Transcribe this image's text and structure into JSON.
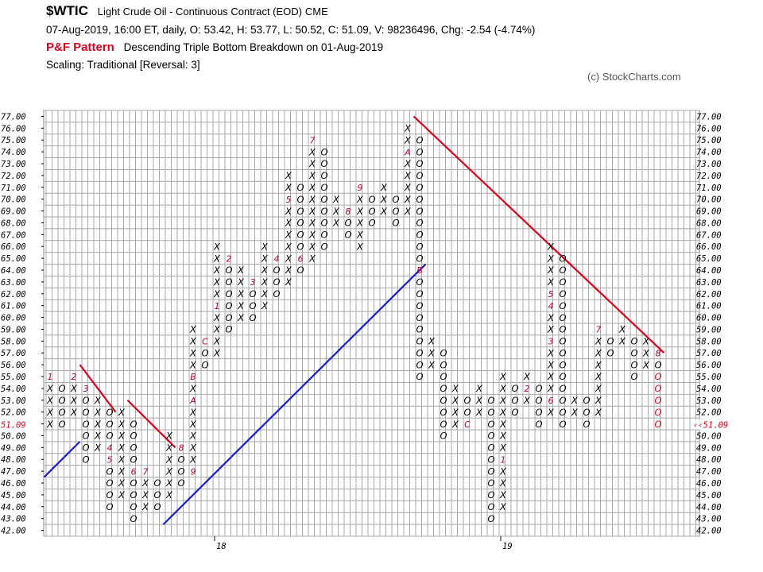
{
  "header": {
    "symbol": "$WTIC",
    "description": "Light Crude Oil - Continuous Contract (EOD)",
    "exchange": "CME",
    "stats": "07-Aug-2019, 16:00 ET, daily, O: 53.42, H: 53.77, L: 50.52, C: 51.09, V: 98236496, Chg: -2.54 (-4.74%)",
    "pattern_label": "P&F Pattern",
    "pattern_text": "Descending Triple Bottom Breakdown on 01-Aug-2019",
    "scaling": "Scaling: Traditional [Reversal: 3]",
    "copyright": "(c) StockCharts.com"
  },
  "colors": {
    "red": "#e0001b",
    "blue": "#1a1ad8",
    "grid": "#a9a9a9",
    "marker": "#c00030"
  },
  "chart_data": {
    "type": "point-and-figure",
    "box_size": 1,
    "reversal": 3,
    "ylim": [
      42,
      77
    ],
    "y_ticks": [
      42,
      43,
      44,
      45,
      46,
      47,
      48,
      49,
      50,
      51,
      52,
      53,
      54,
      55,
      56,
      57,
      58,
      59,
      60,
      61,
      62,
      63,
      64,
      65,
      66,
      67,
      68,
      69,
      70,
      71,
      72,
      73,
      74,
      75,
      76,
      77
    ],
    "x_labels": [
      {
        "column": 14,
        "label": "18"
      },
      {
        "column": 38,
        "label": "19"
      }
    ],
    "current_price_label": "51.09",
    "columns": [
      {
        "t": "X",
        "lo": 51,
        "hi": 55,
        "marks": {
          "55": "1"
        }
      },
      {
        "t": "O",
        "lo": 51,
        "hi": 54
      },
      {
        "t": "X",
        "lo": 52,
        "hi": 55,
        "marks": {
          "55": "2"
        }
      },
      {
        "t": "O",
        "lo": 48,
        "hi": 54,
        "marks": {
          "54": "3"
        }
      },
      {
        "t": "X",
        "lo": 49,
        "hi": 53
      },
      {
        "t": "O",
        "lo": 44,
        "hi": 52,
        "marks": {
          "49": "4",
          "48": "5"
        }
      },
      {
        "t": "X",
        "lo": 45,
        "hi": 52
      },
      {
        "t": "O",
        "lo": 43,
        "hi": 51,
        "marks": {
          "47": "6"
        }
      },
      {
        "t": "X",
        "lo": 44,
        "hi": 47,
        "marks": {
          "47": "7"
        }
      },
      {
        "t": "O",
        "lo": 44,
        "hi": 46
      },
      {
        "t": "X",
        "lo": 45,
        "hi": 50
      },
      {
        "t": "O",
        "lo": 46,
        "hi": 49,
        "marks": {
          "49": "8"
        }
      },
      {
        "t": "X",
        "lo": 47,
        "hi": 59,
        "marks": {
          "47": "9",
          "53": "A",
          "55": "B"
        }
      },
      {
        "t": "O",
        "lo": 56,
        "hi": 58,
        "marks": {
          "58": "C"
        }
      },
      {
        "t": "X",
        "lo": 57,
        "hi": 66,
        "marks": {
          "61": "1"
        }
      },
      {
        "t": "O",
        "lo": 59,
        "hi": 65,
        "marks": {
          "65": "2"
        }
      },
      {
        "t": "X",
        "lo": 60,
        "hi": 64
      },
      {
        "t": "O",
        "lo": 60,
        "hi": 63,
        "marks": {
          "63": "3"
        }
      },
      {
        "t": "X",
        "lo": 61,
        "hi": 66
      },
      {
        "t": "O",
        "lo": 62,
        "hi": 65,
        "marks": {
          "65": "4"
        }
      },
      {
        "t": "X",
        "lo": 63,
        "hi": 72,
        "marks": {
          "70": "5"
        }
      },
      {
        "t": "O",
        "lo": 64,
        "hi": 71,
        "marks": {
          "65": "6"
        }
      },
      {
        "t": "X",
        "lo": 65,
        "hi": 75,
        "marks": {
          "75": "7"
        }
      },
      {
        "t": "O",
        "lo": 66,
        "hi": 74
      },
      {
        "t": "X",
        "lo": 68,
        "hi": 70
      },
      {
        "t": "O",
        "lo": 67,
        "hi": 69,
        "marks": {
          "69": "8"
        }
      },
      {
        "t": "X",
        "lo": 66,
        "hi": 71,
        "marks": {
          "71": "9"
        }
      },
      {
        "t": "O",
        "lo": 68,
        "hi": 70
      },
      {
        "t": "X",
        "lo": 69,
        "hi": 71
      },
      {
        "t": "O",
        "lo": 68,
        "hi": 70
      },
      {
        "t": "X",
        "lo": 69,
        "hi": 76,
        "marks": {
          "74": "A"
        }
      },
      {
        "t": "O",
        "lo": 55,
        "hi": 75,
        "marks": {
          "64": "B"
        }
      },
      {
        "t": "X",
        "lo": 56,
        "hi": 58
      },
      {
        "t": "O",
        "lo": 50,
        "hi": 57
      },
      {
        "t": "X",
        "lo": 51,
        "hi": 54
      },
      {
        "t": "O",
        "lo": 51,
        "hi": 53,
        "marks": {
          "51": "C"
        }
      },
      {
        "t": "X",
        "lo": 52,
        "hi": 54
      },
      {
        "t": "O",
        "lo": 43,
        "hi": 53
      },
      {
        "t": "X",
        "lo": 44,
        "hi": 55,
        "marks": {
          "48": "1"
        }
      },
      {
        "t": "O",
        "lo": 52,
        "hi": 54
      },
      {
        "t": "X",
        "lo": 53,
        "hi": 55,
        "marks": {
          "54": "2"
        }
      },
      {
        "t": "O",
        "lo": 51,
        "hi": 54
      },
      {
        "t": "X",
        "lo": 52,
        "hi": 66,
        "marks": {
          "58": "3",
          "61": "4",
          "62": "5",
          "53": "6"
        }
      },
      {
        "t": "O",
        "lo": 51,
        "hi": 65
      },
      {
        "t": "X",
        "lo": 52,
        "hi": 53
      },
      {
        "t": "O",
        "lo": 51,
        "hi": 53
      },
      {
        "t": "X",
        "lo": 52,
        "hi": 59,
        "marks": {
          "59": "7"
        }
      },
      {
        "t": "O",
        "lo": 57,
        "hi": 58
      },
      {
        "t": "X",
        "lo": 58,
        "hi": 59
      },
      {
        "t": "O",
        "lo": 55,
        "hi": 58
      },
      {
        "t": "X",
        "lo": 56,
        "hi": 58
      },
      {
        "t": "O",
        "lo": 51,
        "hi": 57,
        "marks": {
          "57": "8",
          "51": "51"
        }
      }
    ],
    "trendlines": [
      {
        "color": "red",
        "from": [
          2.5,
          56
        ],
        "to": [
          5.5,
          52
        ]
      },
      {
        "color": "red",
        "from": [
          6.5,
          53
        ],
        "to": [
          10.5,
          49
        ]
      },
      {
        "color": "red",
        "from": [
          30.5,
          77
        ],
        "to": [
          51.5,
          57
        ]
      },
      {
        "color": "blue",
        "from": [
          -0.5,
          46.5
        ],
        "to": [
          2.5,
          49.5
        ]
      },
      {
        "color": "blue",
        "from": [
          9.5,
          42.5
        ],
        "to": [
          31.5,
          64.5
        ]
      }
    ]
  }
}
